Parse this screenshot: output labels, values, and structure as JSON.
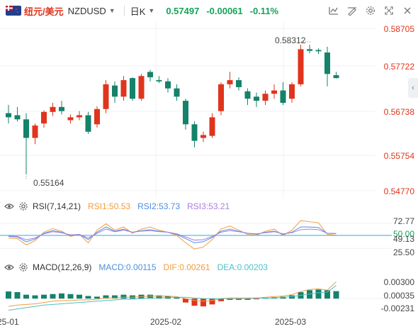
{
  "toolbar": {
    "pair_cn": "纽元/美元",
    "pair_code": "NZDUSD",
    "period": "日K",
    "price": "0.57497",
    "change": "-0.00061",
    "change_pct": "-0.11%",
    "icons": [
      "indicator-icon",
      "drawing-icon",
      "settings-icon",
      "fullscreen-icon",
      "close-icon"
    ]
  },
  "colors": {
    "up": "#e0341c",
    "down": "#15826a",
    "price": "#15a35a",
    "grid": "#eef0f3"
  },
  "main_chart": {
    "y_ticks": [
      "0.58705",
      "0.57722",
      "0.56738",
      "0.55754",
      "0.54770"
    ],
    "high_label": "0.58312",
    "low_label": "0.55164",
    "x_ticks": [
      "25-01",
      "2025-02",
      "2025-03"
    ]
  },
  "rsi": {
    "name": "RSI(7,14,21)",
    "rsi1": "RSI1:50.53",
    "rsi2": "RSI2:53.73",
    "rsi3": "RSI3:53.21",
    "y_ticks": [
      "72.77",
      "50.00",
      "49.13",
      "25.50"
    ]
  },
  "macd": {
    "name": "MACD(12,26,9)",
    "macd": "MACD:0.00115",
    "dif": "DIF:0.00261",
    "dea": "DEA:0.00203",
    "y_ticks": [
      "0.00300",
      "0.00035",
      "-0.00231"
    ]
  },
  "chart_data": {
    "type": "candlestick",
    "series_note": "daily candles, approximate",
    "ylim": [
      0.5477,
      0.58705
    ],
    "candles": [
      [
        0.5665,
        0.5685,
        0.564,
        0.5655
      ],
      [
        0.566,
        0.568,
        0.5645,
        0.565
      ],
      [
        0.565,
        0.5665,
        0.5518,
        0.5605
      ],
      [
        0.5605,
        0.564,
        0.559,
        0.5635
      ],
      [
        0.564,
        0.5672,
        0.563,
        0.5668
      ],
      [
        0.5668,
        0.569,
        0.5658,
        0.568
      ],
      [
        0.568,
        0.5695,
        0.5662,
        0.567
      ],
      [
        0.5648,
        0.5662,
        0.564,
        0.5655
      ],
      [
        0.5655,
        0.567,
        0.5648,
        0.566
      ],
      [
        0.566,
        0.5668,
        0.5615,
        0.562
      ],
      [
        0.5638,
        0.5682,
        0.563,
        0.5675
      ],
      [
        0.5675,
        0.5745,
        0.5665,
        0.5735
      ],
      [
        0.5732,
        0.5742,
        0.569,
        0.5705
      ],
      [
        0.5705,
        0.5755,
        0.5695,
        0.5745
      ],
      [
        0.575,
        0.5752,
        0.5695,
        0.57
      ],
      [
        0.57,
        0.576,
        0.5695,
        0.5755
      ],
      [
        0.5765,
        0.577,
        0.5742,
        0.5752
      ],
      [
        0.5745,
        0.5755,
        0.5738,
        0.5742
      ],
      [
        0.5742,
        0.575,
        0.5715,
        0.5725
      ],
      [
        0.5725,
        0.5735,
        0.5695,
        0.5705
      ],
      [
        0.5695,
        0.57,
        0.5625,
        0.5638
      ],
      [
        0.5638,
        0.5645,
        0.5582,
        0.5598
      ],
      [
        0.5605,
        0.562,
        0.5595,
        0.5612
      ],
      [
        0.561,
        0.5665,
        0.5605,
        0.5655
      ],
      [
        0.567,
        0.574,
        0.566,
        0.5735
      ],
      [
        0.5735,
        0.5765,
        0.5725,
        0.5745
      ],
      [
        0.5745,
        0.5752,
        0.572,
        0.5728
      ],
      [
        0.5718,
        0.5725,
        0.5685,
        0.57
      ],
      [
        0.5705,
        0.5715,
        0.568,
        0.5695
      ],
      [
        0.5695,
        0.572,
        0.5685,
        0.5712
      ],
      [
        0.5712,
        0.5735,
        0.57,
        0.572
      ],
      [
        0.572,
        0.574,
        0.5685,
        0.569
      ],
      [
        0.57,
        0.574,
        0.569,
        0.5735
      ],
      [
        0.5735,
        0.5831,
        0.573,
        0.582
      ],
      [
        0.582,
        0.5831,
        0.581,
        0.5816
      ],
      [
        0.5818,
        0.5822,
        0.5808,
        0.5815
      ],
      [
        0.5812,
        0.5826,
        0.573,
        0.576
      ],
      [
        0.5757,
        0.5765,
        0.5749,
        0.575
      ]
    ],
    "rsi_lines": {
      "RSI1": [
        45,
        44,
        32,
        40,
        56,
        63,
        58,
        48,
        52,
        36,
        60,
        72,
        60,
        66,
        54,
        62,
        66,
        60,
        56,
        50,
        36,
        24,
        28,
        42,
        62,
        68,
        60,
        52,
        50,
        58,
        62,
        50,
        60,
        78,
        76,
        74,
        52,
        50.53
      ],
      "RSI2": [
        48,
        47,
        38,
        43,
        54,
        59,
        56,
        50,
        52,
        42,
        56,
        66,
        58,
        62,
        56,
        59,
        61,
        58,
        56,
        52,
        44,
        36,
        38,
        46,
        58,
        62,
        58,
        54,
        52,
        56,
        58,
        52,
        56,
        66,
        66,
        65,
        54,
        53.73
      ],
      "RSI3": [
        49,
        48,
        42,
        45,
        53,
        57,
        55,
        51,
        52,
        45,
        54,
        62,
        57,
        60,
        56,
        58,
        59,
        57,
        56,
        53,
        47,
        41,
        42,
        48,
        56,
        59,
        57,
        54,
        53,
        55,
        57,
        53,
        55,
        61,
        62,
        61,
        54,
        53.21
      ]
    },
    "macd_hist": [
      0.0011,
      0.001,
      0.0006,
      0.0005,
      0.0006,
      0.0007,
      0.0008,
      0.0007,
      0.0006,
      0.0004,
      0.0003,
      0.0005,
      0.0005,
      0.0006,
      0.0005,
      0.0006,
      0.0006,
      0.0005,
      0.0004,
      0.0002,
      -0.0006,
      -0.0011,
      -0.0012,
      -0.0009,
      -0.0004,
      -0.0002,
      -0.0002,
      -0.0002,
      -0.0001,
      0.0001,
      0.0002,
      0.0003,
      0.0005,
      0.001,
      0.0013,
      0.0014,
      0.0013,
      0.00115
    ],
    "dif": [
      -0.0012,
      -0.001,
      -0.0009,
      -0.0008,
      -0.0006,
      -0.0004,
      -0.0003,
      -0.0003,
      -0.0002,
      -0.0002,
      -0.0001,
      0.0001,
      0.0001,
      0.0002,
      0.0002,
      0.0003,
      0.0004,
      0.0004,
      0.0004,
      0.0003,
      0.0,
      -0.0003,
      -0.0004,
      -0.0003,
      0.0,
      0.0001,
      0.0001,
      0.0001,
      0.0001,
      0.0002,
      0.0003,
      0.0004,
      0.0006,
      0.0011,
      0.0014,
      0.0015,
      0.0013,
      0.00261
    ],
    "dea": [
      -0.0018,
      -0.0016,
      -0.0014,
      -0.0012,
      -0.001,
      -0.0009,
      -0.0008,
      -0.0007,
      -0.0006,
      -0.0005,
      -0.0004,
      -0.0003,
      -0.0002,
      -0.0001,
      -0.0001,
      0.0,
      0.0001,
      0.0001,
      0.0002,
      0.0002,
      0.0002,
      0.0001,
      0.0,
      0.0,
      0.0,
      0.0,
      0.0,
      0.0,
      0.0001,
      0.0001,
      0.0001,
      0.0002,
      0.0003,
      0.0005,
      0.0007,
      0.0009,
      0.001,
      0.00203
    ]
  }
}
